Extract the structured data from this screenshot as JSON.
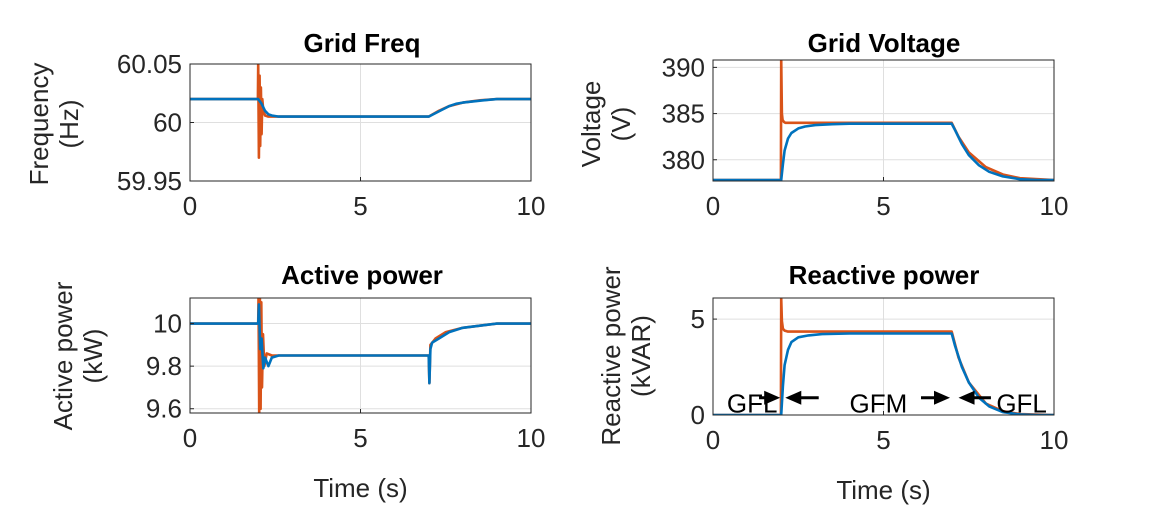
{
  "chart_data": [
    {
      "type": "line",
      "title": "Grid Freq",
      "xlabel": "",
      "ylabel": [
        "Frequency",
        "(Hz)"
      ],
      "xlim": [
        0,
        10
      ],
      "ylim": [
        59.95,
        60.05
      ],
      "xticks": [
        0,
        5,
        10
      ],
      "xtick_labels": [
        "0",
        "5",
        "10"
      ],
      "yticks": [
        59.95,
        60,
        60.05
      ],
      "ytick_labels": [
        "59.95",
        "60",
        "60.05"
      ],
      "series": [
        {
          "name": "orange",
          "color": "#d95319",
          "x": [
            0,
            1.99,
            2.0,
            2.02,
            2.04,
            2.06,
            2.08,
            2.1,
            2.12,
            2.15,
            2.2,
            2.3,
            2.5,
            3,
            7,
            7.3,
            7.6,
            8,
            8.5,
            9,
            10
          ],
          "y": [
            60.02,
            60.02,
            60.05,
            59.97,
            60.04,
            59.98,
            60.03,
            59.99,
            60.02,
            60.01,
            60.006,
            60.005,
            60.005,
            60.005,
            60.005,
            60.01,
            60.014,
            60.017,
            60.019,
            60.02,
            60.02
          ]
        },
        {
          "name": "blue",
          "color": "#0072bd",
          "x": [
            0,
            2.0,
            2.1,
            2.2,
            2.3,
            2.4,
            2.6,
            3,
            4,
            7,
            7.2,
            7.4,
            7.6,
            7.8,
            8,
            8.3,
            8.6,
            9,
            9.5,
            10
          ],
          "y": [
            60.02,
            60.02,
            60.016,
            60.01,
            60.007,
            60.006,
            60.005,
            60.005,
            60.005,
            60.005,
            60.008,
            60.011,
            60.014,
            60.016,
            60.017,
            60.018,
            60.019,
            60.02,
            60.02,
            60.02
          ]
        }
      ]
    },
    {
      "type": "line",
      "title": "Grid Voltage",
      "xlabel": "",
      "ylabel": [
        "Voltage",
        "(V)"
      ],
      "xlim": [
        0,
        10
      ],
      "ylim": [
        377.7,
        390.8
      ],
      "xticks": [
        0,
        5,
        10
      ],
      "xtick_labels": [
        "0",
        "5",
        "10"
      ],
      "yticks": [
        380,
        385,
        390
      ],
      "ytick_labels": [
        "380",
        "385",
        "390"
      ],
      "series": [
        {
          "name": "orange",
          "color": "#d95319",
          "x": [
            0,
            1.99,
            2.0,
            2.02,
            2.04,
            2.08,
            2.12,
            2.2,
            2.4,
            3,
            7,
            7.2,
            7.5,
            8,
            8.5,
            9,
            10
          ],
          "y": [
            377.8,
            377.8,
            391,
            385.0,
            384.3,
            384.1,
            384.0,
            384.0,
            384.0,
            384.0,
            384.0,
            382.5,
            380.8,
            379.2,
            378.4,
            378.0,
            377.8
          ]
        },
        {
          "name": "blue",
          "color": "#0072bd",
          "x": [
            0,
            2.0,
            2.05,
            2.1,
            2.2,
            2.3,
            2.5,
            2.7,
            3,
            3.5,
            4,
            5,
            7,
            7.1,
            7.3,
            7.5,
            7.8,
            8.1,
            8.5,
            9,
            9.5,
            10
          ],
          "y": [
            377.8,
            377.8,
            379.5,
            381.0,
            382.3,
            382.9,
            383.4,
            383.6,
            383.75,
            383.85,
            383.9,
            383.9,
            383.9,
            383.2,
            381.7,
            380.5,
            379.4,
            378.7,
            378.2,
            377.9,
            377.8,
            377.8
          ]
        }
      ]
    },
    {
      "type": "line",
      "title": "Active power",
      "xlabel": "Time (s)",
      "ylabel": [
        "Active power",
        "(kW)"
      ],
      "xlim": [
        0,
        10
      ],
      "ylim": [
        9.58,
        10.12
      ],
      "xticks": [
        0,
        5,
        10
      ],
      "xtick_labels": [
        "0",
        "5",
        "10"
      ],
      "yticks": [
        9.6,
        9.8,
        10
      ],
      "ytick_labels": [
        "9.6",
        "9.8",
        "10"
      ],
      "series": [
        {
          "name": "orange",
          "color": "#d95319",
          "x": [
            0,
            2.0,
            2.01,
            2.03,
            2.05,
            2.07,
            2.09,
            2.11,
            2.14,
            2.18,
            2.25,
            2.4,
            3,
            7,
            7.02,
            7.05,
            7.2,
            7.5,
            8,
            8.5,
            9,
            10
          ],
          "y": [
            10.0,
            10.0,
            10.12,
            9.58,
            10.12,
            9.6,
            10.1,
            9.7,
            9.95,
            9.8,
            9.86,
            9.85,
            9.85,
            9.85,
            9.72,
            9.9,
            9.93,
            9.96,
            9.98,
            9.99,
            10.0,
            10.0
          ]
        },
        {
          "name": "blue",
          "color": "#0072bd",
          "x": [
            0,
            2.0,
            2.02,
            2.06,
            2.1,
            2.15,
            2.2,
            2.3,
            2.4,
            2.6,
            3,
            5,
            7,
            7.02,
            7.05,
            7.1,
            7.3,
            7.6,
            8,
            8.5,
            9,
            10
          ],
          "y": [
            10.0,
            10.0,
            10.09,
            9.88,
            9.93,
            9.79,
            9.84,
            9.8,
            9.84,
            9.85,
            9.85,
            9.85,
            9.85,
            9.72,
            9.88,
            9.91,
            9.93,
            9.96,
            9.98,
            9.99,
            10.0,
            10.0
          ]
        }
      ]
    },
    {
      "type": "line",
      "title": "Reactive power",
      "xlabel": "Time (s)",
      "ylabel": [
        "Reactive power",
        "(kVAR)"
      ],
      "xlim": [
        0,
        10
      ],
      "ylim": [
        0,
        6.1
      ],
      "xticks": [
        0,
        5,
        10
      ],
      "xtick_labels": [
        "0",
        "5",
        "10"
      ],
      "yticks": [
        0,
        5
      ],
      "ytick_labels": [
        "0",
        "5"
      ],
      "series": [
        {
          "name": "orange",
          "color": "#d95319",
          "x": [
            0,
            1.99,
            2.0,
            2.02,
            2.05,
            2.1,
            2.2,
            2.4,
            3,
            7,
            7.2,
            7.5,
            8,
            8.5,
            9,
            10
          ],
          "y": [
            0,
            0,
            6.1,
            4.9,
            4.5,
            4.4,
            4.35,
            4.35,
            4.35,
            4.35,
            3.0,
            1.7,
            0.6,
            0.2,
            0.05,
            0
          ]
        },
        {
          "name": "blue",
          "color": "#0072bd",
          "x": [
            0,
            2.0,
            2.05,
            2.1,
            2.2,
            2.3,
            2.5,
            2.8,
            3.2,
            4,
            5,
            7,
            7.1,
            7.3,
            7.5,
            7.8,
            8.1,
            8.5,
            9,
            9.5,
            10
          ],
          "y": [
            0,
            0,
            1.5,
            2.6,
            3.4,
            3.8,
            4.05,
            4.15,
            4.22,
            4.25,
            4.25,
            4.25,
            3.6,
            2.5,
            1.7,
            0.9,
            0.45,
            0.15,
            0.03,
            0,
            0
          ]
        }
      ],
      "annotations": {
        "labels": [
          {
            "text": "GFL",
            "x": 1.15,
            "y": 0.6
          },
          {
            "text": "GFM",
            "x": 4.85,
            "y": 0.6
          },
          {
            "text": "GFL",
            "x": 9.05,
            "y": 0.6
          }
        ],
        "arrows": [
          {
            "from": 1.35,
            "to": 1.97,
            "y": 0.9
          },
          {
            "from": 3.1,
            "to": 2.12,
            "y": 0.9
          },
          {
            "from": 6.1,
            "to": 6.95,
            "y": 0.9
          },
          {
            "from": 8.15,
            "to": 7.2,
            "y": 0.9
          }
        ]
      }
    }
  ]
}
